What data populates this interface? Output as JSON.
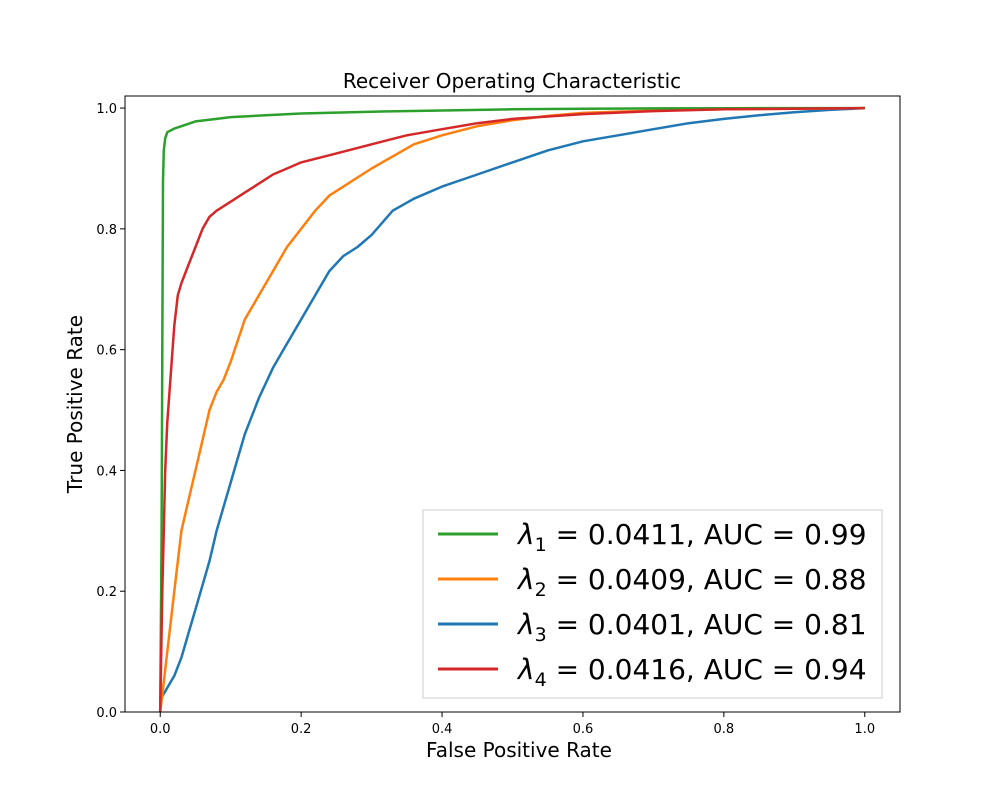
{
  "chart_data": {
    "type": "line",
    "title": "Receiver Operating Characteristic",
    "xlabel": "False Positive Rate",
    "ylabel": "True Positive Rate",
    "xlim": [
      -0.05,
      1.05
    ],
    "ylim": [
      0.0,
      1.02
    ],
    "xticks": [
      "0.0",
      "0.2",
      "0.4",
      "0.6",
      "0.8",
      "1.0"
    ],
    "yticks": [
      "0.0",
      "0.2",
      "0.4",
      "0.6",
      "0.8",
      "1.0"
    ],
    "legend_position": "lower-right",
    "grid": false,
    "series": [
      {
        "name": "λ1 = 0.0411, AUC = 0.99",
        "symbol": "λ",
        "subscript": "1",
        "rest": " = 0.0411, AUC = 0.99",
        "color": "#2ca02c",
        "x": [
          0,
          0.002,
          0.003,
          0.004,
          0.005,
          0.007,
          0.01,
          0.015,
          0.02,
          0.03,
          0.05,
          0.08,
          0.1,
          0.15,
          0.2,
          0.3,
          0.4,
          0.5,
          0.6,
          0.7,
          0.8,
          0.9,
          1.0
        ],
        "y": [
          0,
          0.3,
          0.6,
          0.88,
          0.93,
          0.95,
          0.96,
          0.963,
          0.966,
          0.97,
          0.978,
          0.982,
          0.985,
          0.988,
          0.991,
          0.994,
          0.996,
          0.998,
          0.999,
          0.9995,
          0.9998,
          1.0,
          1.0
        ]
      },
      {
        "name": "λ2 = 0.0409, AUC = 0.88",
        "symbol": "λ",
        "subscript": "2",
        "rest": " = 0.0409, AUC = 0.88",
        "color": "#ff7f0e",
        "x": [
          0,
          0.005,
          0.01,
          0.02,
          0.03,
          0.04,
          0.05,
          0.06,
          0.07,
          0.08,
          0.09,
          0.1,
          0.12,
          0.14,
          0.16,
          0.18,
          0.2,
          0.22,
          0.24,
          0.26,
          0.28,
          0.3,
          0.33,
          0.36,
          0.4,
          0.45,
          0.5,
          0.55,
          0.6,
          0.7,
          0.8,
          0.9,
          1.0
        ],
        "y": [
          0,
          0.05,
          0.1,
          0.2,
          0.3,
          0.35,
          0.4,
          0.45,
          0.5,
          0.53,
          0.55,
          0.58,
          0.65,
          0.69,
          0.73,
          0.77,
          0.8,
          0.83,
          0.855,
          0.87,
          0.885,
          0.9,
          0.92,
          0.94,
          0.955,
          0.97,
          0.98,
          0.987,
          0.992,
          0.996,
          0.998,
          0.999,
          1.0
        ]
      },
      {
        "name": "λ3 = 0.0401, AUC = 0.81",
        "symbol": "λ",
        "subscript": "3",
        "rest": " = 0.0401, AUC = 0.81",
        "color": "#1f77b4",
        "x": [
          0,
          0.01,
          0.02,
          0.03,
          0.04,
          0.05,
          0.06,
          0.07,
          0.08,
          0.09,
          0.1,
          0.11,
          0.12,
          0.14,
          0.16,
          0.18,
          0.2,
          0.22,
          0.24,
          0.26,
          0.28,
          0.3,
          0.33,
          0.36,
          0.4,
          0.45,
          0.5,
          0.55,
          0.6,
          0.65,
          0.7,
          0.75,
          0.8,
          0.85,
          0.9,
          0.95,
          1.0
        ],
        "y": [
          0.02,
          0.04,
          0.06,
          0.09,
          0.13,
          0.17,
          0.21,
          0.25,
          0.3,
          0.34,
          0.38,
          0.42,
          0.46,
          0.52,
          0.57,
          0.61,
          0.65,
          0.69,
          0.73,
          0.755,
          0.77,
          0.79,
          0.83,
          0.85,
          0.87,
          0.89,
          0.91,
          0.93,
          0.945,
          0.955,
          0.965,
          0.975,
          0.982,
          0.988,
          0.993,
          0.997,
          1.0
        ]
      },
      {
        "name": "λ4 = 0.0416, AUC = 0.94",
        "symbol": "λ",
        "subscript": "4",
        "rest": " = 0.0416, AUC = 0.94",
        "color": "#d62728",
        "x": [
          0,
          0.003,
          0.005,
          0.007,
          0.01,
          0.015,
          0.02,
          0.025,
          0.03,
          0.04,
          0.05,
          0.06,
          0.07,
          0.08,
          0.1,
          0.12,
          0.14,
          0.16,
          0.18,
          0.2,
          0.25,
          0.3,
          0.35,
          0.4,
          0.45,
          0.5,
          0.6,
          0.7,
          0.8,
          0.9,
          1.0
        ],
        "y": [
          0,
          0.2,
          0.3,
          0.4,
          0.48,
          0.56,
          0.64,
          0.69,
          0.71,
          0.74,
          0.77,
          0.8,
          0.82,
          0.83,
          0.845,
          0.86,
          0.875,
          0.89,
          0.9,
          0.91,
          0.925,
          0.94,
          0.955,
          0.965,
          0.975,
          0.982,
          0.99,
          0.995,
          0.998,
          0.999,
          1.0
        ]
      }
    ]
  }
}
